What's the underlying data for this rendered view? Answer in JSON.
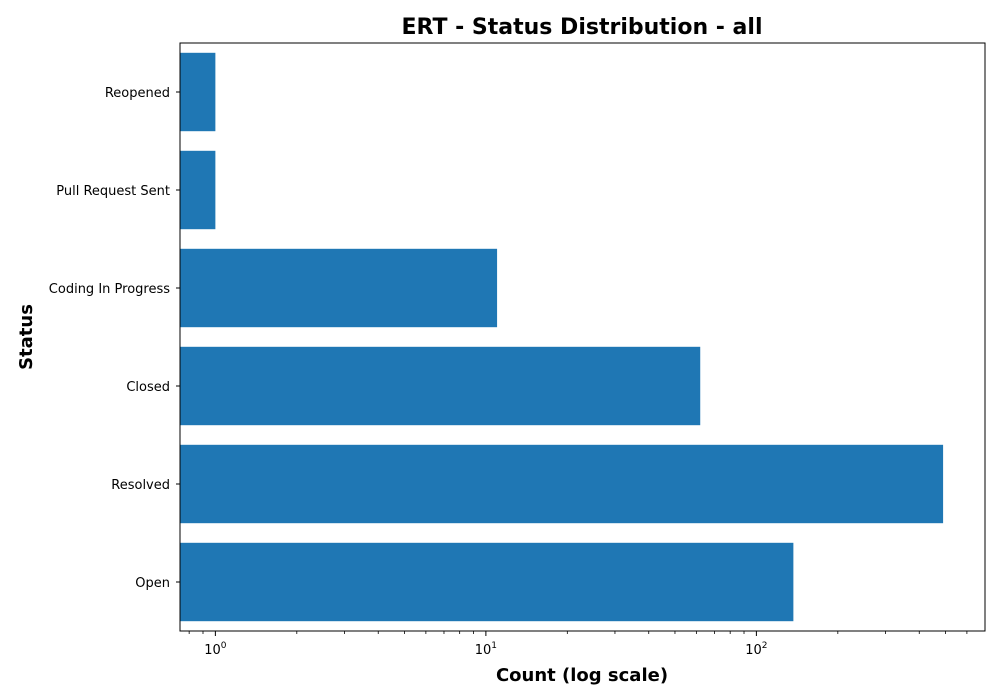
{
  "chart_data": {
    "type": "bar",
    "orientation": "horizontal",
    "title": "ERT - Status Distribution - all",
    "xlabel": "Count (log scale)",
    "ylabel": "Status",
    "x_scale": "log",
    "xlim": [
      0.74,
      700
    ],
    "categories": [
      "Open",
      "Resolved",
      "Closed",
      "Coding In Progress",
      "Pull Request Sent",
      "Reopened"
    ],
    "series": [
      {
        "values": [
          137,
          490,
          62,
          11,
          1,
          1
        ]
      }
    ],
    "x_ticks": [
      {
        "base": "10",
        "exp": "0",
        "value": 1
      },
      {
        "base": "10",
        "exp": "1",
        "value": 10
      },
      {
        "base": "10",
        "exp": "2",
        "value": 100
      }
    ],
    "bar_color": "#1f77b4",
    "grid": false,
    "legend": "none"
  }
}
